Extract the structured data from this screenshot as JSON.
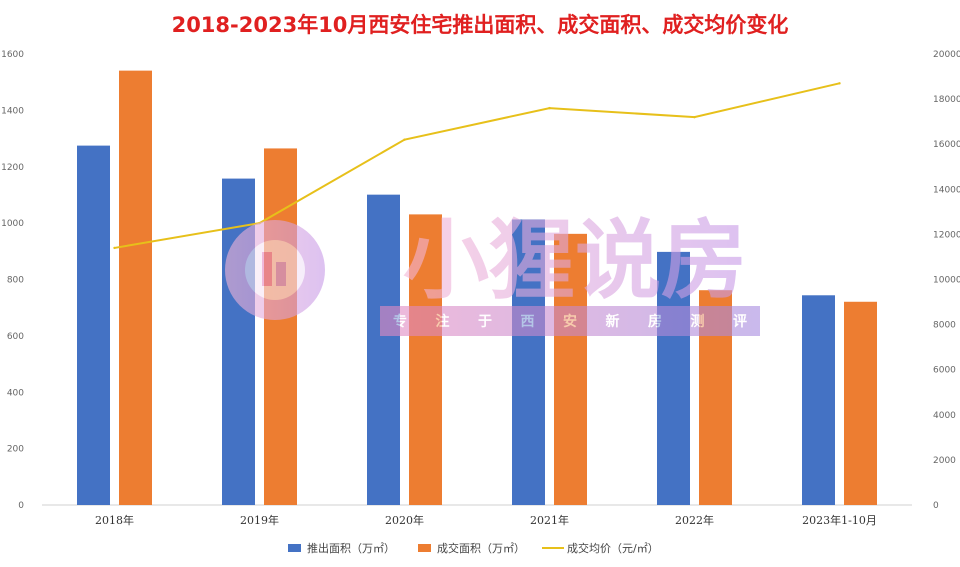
{
  "chart_data": {
    "type": "bar",
    "title": "2018-2023年10月西安住宅推出面积、成交面积、成交均价变化",
    "categories": [
      "2018年",
      "2019年",
      "2020年",
      "2021年",
      "2022年",
      "2023年1-10月"
    ],
    "y_left": {
      "ylim": [
        0,
        1600
      ],
      "ticks": [
        "0",
        "200",
        "400",
        "600",
        "800",
        "1000",
        "1200",
        "1400",
        "1600"
      ]
    },
    "y_right": {
      "ylim": [
        0,
        20000
      ],
      "ticks": [
        "0",
        "2000",
        "4000",
        "6000",
        "8000",
        "10000",
        "12000",
        "14000",
        "16000",
        "18000",
        "20000"
      ]
    },
    "series": [
      {
        "name": "推出面积（万㎡）",
        "type": "bar",
        "axis": "left",
        "color": "#4472c4",
        "values": [
          1275,
          1158,
          1101,
          1013,
          898,
          744
        ]
      },
      {
        "name": "成交面积（万㎡）",
        "type": "bar",
        "axis": "left",
        "color": "#ed7d31",
        "values": [
          1541,
          1265,
          1031,
          962,
          762,
          721
        ]
      },
      {
        "name": "成交均价（元/㎡）",
        "type": "line",
        "axis": "right",
        "color": "#e7c01a",
        "values": [
          11400,
          12500,
          16200,
          17600,
          17200,
          18700
        ]
      }
    ],
    "legend_position": "bottom",
    "grid": false
  },
  "watermark": {
    "text": "小猩说房",
    "slogan": [
      "专",
      "注",
      "于",
      "西",
      "安",
      "新",
      "房",
      "测",
      "评"
    ]
  }
}
